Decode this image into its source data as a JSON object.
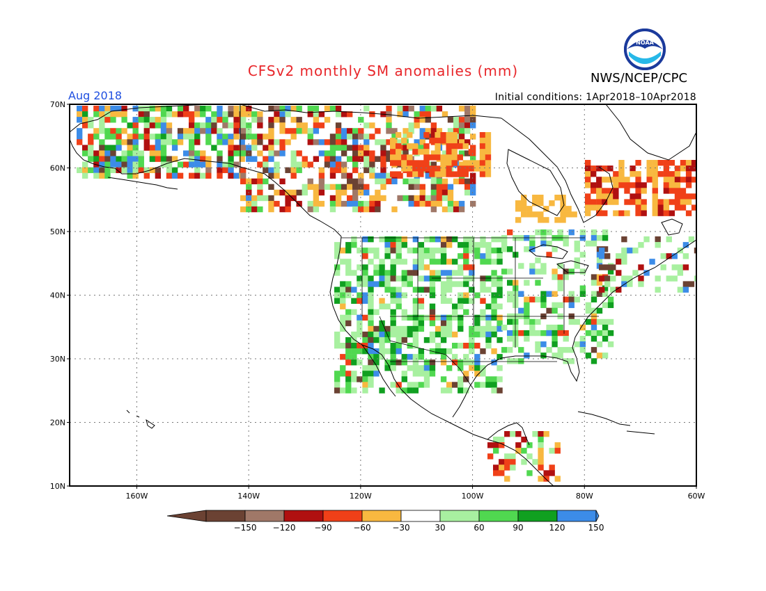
{
  "title": "CFSv2 monthly SM anomalies (mm)",
  "org": "NWS/NCEP/CPC",
  "valid_month": "Aug 2018",
  "initial_conditions": "Initial conditions: 1Apr2018–10Apr2018",
  "logo_text": "NOAA",
  "map": {
    "lon_range": [
      -172,
      -60
    ],
    "lat_range": [
      10,
      70
    ],
    "lat_labels": [
      "10N",
      "20N",
      "30N",
      "40N",
      "50N",
      "60N",
      "70N"
    ],
    "lon_labels": [
      "160W",
      "140W",
      "120W",
      "100W",
      "80W",
      "60W"
    ]
  },
  "colorbar": {
    "labels": [
      "−150",
      "−120",
      "−90",
      "−60",
      "−30",
      "30",
      "60",
      "90",
      "120",
      "150"
    ],
    "colors": [
      "#6b4233",
      "#a07868",
      "#b01010",
      "#f04018",
      "#f8b840",
      "#ffffff",
      "#a8f0a0",
      "#50d850",
      "#10a020",
      "#3c8ce8"
    ],
    "low_end_color": "#6b4233",
    "high_end_color": "#3c8ce8"
  }
}
